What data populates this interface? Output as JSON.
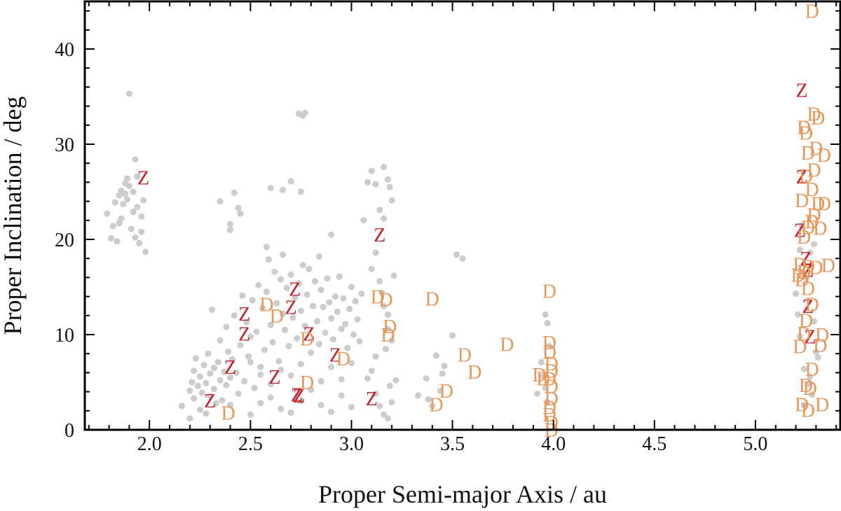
{
  "chart_data": {
    "type": "scatter",
    "title": "",
    "xlabel": "Proper Semi-major Axis / au",
    "ylabel": "Proper Inclination / deg",
    "xlim": [
      1.68,
      5.42
    ],
    "ylim": [
      0,
      45
    ],
    "x_ticks": [
      2.0,
      2.5,
      3.0,
      3.5,
      4.0,
      4.5,
      5.0
    ],
    "x_tick_labels": [
      "2.0",
      "2.5",
      "3.0",
      "3.5",
      "4.0",
      "4.5",
      "5.0"
    ],
    "y_ticks": [
      0,
      10,
      20,
      30,
      40
    ],
    "y_tick_labels": [
      "0",
      "10",
      "20",
      "30",
      "40"
    ],
    "grid": false,
    "colors": {
      "background_points": "#cccccc",
      "Z": "#c0202a",
      "D": "#e8975a"
    },
    "series": [
      {
        "marker": "dot",
        "points": [
          [
            1.79,
            22.7
          ],
          [
            1.81,
            20.1
          ],
          [
            1.82,
            21.4
          ],
          [
            1.83,
            23.9
          ],
          [
            1.84,
            19.8
          ],
          [
            1.85,
            24.6
          ],
          [
            1.86,
            25.1
          ],
          [
            1.86,
            22.2
          ],
          [
            1.87,
            23.7
          ],
          [
            1.88,
            25.9
          ],
          [
            1.89,
            24.2
          ],
          [
            1.89,
            26.4
          ],
          [
            1.9,
            35.3
          ],
          [
            1.91,
            21.1
          ],
          [
            1.92,
            22.9
          ],
          [
            1.92,
            25.0
          ],
          [
            1.93,
            20.2
          ],
          [
            1.94,
            26.6
          ],
          [
            1.95,
            19.6
          ],
          [
            1.96,
            22.4
          ],
          [
            1.97,
            24.1
          ],
          [
            1.93,
            28.4
          ],
          [
            1.9,
            25.6
          ],
          [
            1.88,
            24.8
          ],
          [
            1.96,
            20.8
          ],
          [
            1.98,
            18.7
          ],
          [
            1.85,
            21.7
          ],
          [
            1.94,
            23.4
          ],
          [
            2.16,
            2.5
          ],
          [
            2.2,
            1.2
          ],
          [
            2.2,
            4.1
          ],
          [
            2.21,
            5.0
          ],
          [
            2.22,
            3.3
          ],
          [
            2.22,
            6.2
          ],
          [
            2.23,
            7.5
          ],
          [
            2.24,
            4.6
          ],
          [
            2.25,
            2.1
          ],
          [
            2.25,
            5.6
          ],
          [
            2.26,
            3.9
          ],
          [
            2.27,
            6.8
          ],
          [
            2.28,
            1.7
          ],
          [
            2.28,
            4.9
          ],
          [
            2.29,
            8.0
          ],
          [
            2.3,
            3.5
          ],
          [
            2.3,
            5.9
          ],
          [
            2.31,
            12.6
          ],
          [
            2.32,
            4.3
          ],
          [
            2.32,
            6.5
          ],
          [
            2.33,
            2.8
          ],
          [
            2.34,
            7.1
          ],
          [
            2.35,
            5.2
          ],
          [
            2.35,
            9.4
          ],
          [
            2.36,
            3.1
          ],
          [
            2.37,
            6.1
          ],
          [
            2.38,
            4.7
          ],
          [
            2.38,
            10.8
          ],
          [
            2.39,
            8.2
          ],
          [
            2.4,
            5.5
          ],
          [
            2.4,
            2.6
          ],
          [
            2.41,
            7.4
          ],
          [
            2.42,
            12.0
          ],
          [
            2.43,
            6.0
          ],
          [
            2.44,
            3.8
          ],
          [
            2.45,
            8.9
          ],
          [
            2.46,
            14.1
          ],
          [
            2.47,
            5.1
          ],
          [
            2.48,
            11.3
          ],
          [
            2.49,
            7.7
          ],
          [
            2.5,
            9.8
          ],
          [
            2.51,
            13.6
          ],
          [
            2.52,
            4.4
          ],
          [
            2.53,
            10.3
          ],
          [
            2.54,
            15.2
          ],
          [
            2.55,
            6.6
          ],
          [
            2.56,
            12.8
          ],
          [
            2.57,
            8.4
          ],
          [
            2.58,
            14.5
          ],
          [
            2.59,
            17.9
          ],
          [
            2.6,
            11.0
          ],
          [
            2.61,
            9.2
          ],
          [
            2.62,
            16.6
          ],
          [
            2.63,
            13.3
          ],
          [
            2.64,
            7.2
          ],
          [
            2.65,
            15.8
          ],
          [
            2.66,
            12.2
          ],
          [
            2.67,
            10.5
          ],
          [
            2.68,
            14.9
          ],
          [
            2.69,
            8.8
          ],
          [
            2.7,
            16.3
          ],
          [
            2.71,
            11.8
          ],
          [
            2.72,
            13.9
          ],
          [
            2.73,
            9.6
          ],
          [
            2.74,
            15.4
          ],
          [
            2.75,
            12.5
          ],
          [
            2.76,
            17.3
          ],
          [
            2.77,
            10.9
          ],
          [
            2.78,
            14.2
          ],
          [
            2.79,
            16.9
          ],
          [
            2.8,
            8.1
          ],
          [
            2.81,
            13.0
          ],
          [
            2.82,
            15.6
          ],
          [
            2.83,
            11.4
          ],
          [
            2.84,
            9.0
          ],
          [
            2.85,
            14.7
          ],
          [
            2.86,
            12.9
          ],
          [
            2.87,
            10.2
          ],
          [
            2.88,
            15.9
          ],
          [
            2.89,
            13.4
          ],
          [
            2.9,
            11.7
          ],
          [
            2.91,
            9.5
          ],
          [
            2.92,
            14.0
          ],
          [
            2.93,
            12.4
          ],
          [
            2.94,
            16.1
          ],
          [
            2.95,
            10.6
          ],
          [
            2.96,
            13.8
          ],
          [
            2.97,
            11.1
          ],
          [
            2.98,
            8.6
          ],
          [
            2.99,
            12.7
          ],
          [
            3.0,
            15.0
          ],
          [
            3.01,
            10.0
          ],
          [
            3.02,
            13.5
          ],
          [
            3.03,
            11.6
          ],
          [
            3.04,
            9.3
          ],
          [
            3.05,
            14.3
          ],
          [
            2.35,
            24.0
          ],
          [
            2.42,
            24.9
          ],
          [
            2.44,
            23.3
          ],
          [
            2.45,
            22.7
          ],
          [
            2.4,
            21.6
          ],
          [
            2.4,
            21.0
          ],
          [
            2.6,
            25.4
          ],
          [
            2.66,
            25.2
          ],
          [
            2.7,
            26.1
          ],
          [
            2.75,
            25.0
          ],
          [
            2.74,
            33.2
          ],
          [
            2.76,
            33.0
          ],
          [
            2.77,
            33.3
          ],
          [
            2.9,
            20.5
          ],
          [
            2.58,
            19.2
          ],
          [
            2.84,
            18.2
          ],
          [
            2.66,
            18.4
          ],
          [
            3.06,
            22.0
          ],
          [
            3.08,
            26.0
          ],
          [
            3.1,
            27.2
          ],
          [
            3.12,
            25.8
          ],
          [
            3.14,
            23.1
          ],
          [
            3.16,
            27.6
          ],
          [
            3.18,
            26.3
          ],
          [
            3.19,
            25.5
          ],
          [
            3.2,
            24.1
          ],
          [
            3.16,
            22.2
          ],
          [
            3.12,
            18.6
          ],
          [
            3.1,
            16.9
          ],
          [
            3.14,
            15.6
          ],
          [
            3.15,
            14.4
          ],
          [
            3.16,
            13.0
          ],
          [
            3.18,
            12.1
          ],
          [
            3.18,
            10.6
          ],
          [
            3.2,
            9.4
          ],
          [
            3.17,
            8.5
          ],
          [
            3.12,
            7.7
          ],
          [
            3.1,
            6.2
          ],
          [
            3.08,
            5.4
          ],
          [
            3.12,
            3.8
          ],
          [
            3.14,
            2.5
          ],
          [
            3.16,
            1.6
          ],
          [
            3.18,
            1.2
          ],
          [
            3.2,
            2.9
          ],
          [
            3.19,
            4.6
          ],
          [
            3.22,
            5.2
          ],
          [
            3.21,
            16.2
          ],
          [
            2.5,
            1.6
          ],
          [
            2.55,
            2.8
          ],
          [
            2.6,
            3.4
          ],
          [
            2.65,
            2.2
          ],
          [
            2.7,
            1.8
          ],
          [
            2.75,
            3.0
          ],
          [
            2.8,
            4.2
          ],
          [
            2.85,
            2.6
          ],
          [
            2.9,
            1.9
          ],
          [
            2.95,
            3.6
          ],
          [
            3.0,
            2.4
          ],
          [
            2.65,
            6.3
          ],
          [
            2.7,
            5.7
          ],
          [
            2.75,
            6.9
          ],
          [
            2.6,
            4.8
          ],
          [
            2.55,
            5.8
          ],
          [
            2.5,
            7.1
          ],
          [
            2.85,
            5.1
          ],
          [
            2.9,
            6.6
          ],
          [
            2.95,
            5.3
          ],
          [
            3.0,
            7.0
          ],
          [
            3.37,
            5.4
          ],
          [
            3.38,
            3.2
          ],
          [
            3.4,
            2.5
          ],
          [
            3.42,
            7.8
          ],
          [
            3.44,
            4.1
          ],
          [
            3.45,
            5.9
          ],
          [
            3.46,
            6.7
          ],
          [
            3.5,
            9.9
          ],
          [
            3.52,
            18.4
          ],
          [
            3.55,
            18.0
          ],
          [
            3.33,
            3.6
          ],
          [
            3.92,
            3.8
          ],
          [
            3.96,
            12.1
          ],
          [
            3.97,
            11.2
          ],
          [
            3.98,
            8.8
          ],
          [
            3.95,
            5.6
          ],
          [
            3.96,
            4.4
          ],
          [
            3.94,
            7.1
          ],
          [
            3.97,
            2.9
          ],
          [
            5.2,
            14.3
          ],
          [
            5.21,
            12.1
          ],
          [
            5.22,
            9.8
          ],
          [
            5.24,
            6.4
          ],
          [
            5.26,
            4.8
          ],
          [
            5.28,
            3.7
          ],
          [
            5.25,
            15.9
          ],
          [
            5.27,
            18.6
          ],
          [
            5.29,
            19.5
          ],
          [
            5.3,
            8.2
          ],
          [
            5.23,
            21.4
          ],
          [
            5.22,
            18.9
          ],
          [
            5.31,
            7.6
          ],
          [
            5.24,
            2.6
          ],
          [
            5.27,
            5.6
          ],
          [
            5.29,
            11.4
          ]
        ]
      },
      {
        "name": "Z",
        "marker": "Z",
        "points": [
          [
            1.97,
            26.5
          ],
          [
            2.47,
            12.2
          ],
          [
            2.47,
            10.1
          ],
          [
            2.4,
            6.6
          ],
          [
            2.3,
            3.1
          ],
          [
            2.62,
            5.6
          ],
          [
            2.72,
            14.8
          ],
          [
            2.7,
            12.9
          ],
          [
            2.73,
            3.7
          ],
          [
            2.74,
            3.6
          ],
          [
            2.79,
            10.1
          ],
          [
            2.92,
            7.9
          ],
          [
            3.1,
            3.3
          ],
          [
            3.14,
            20.5
          ],
          [
            5.23,
            35.7
          ],
          [
            5.23,
            26.6
          ],
          [
            5.22,
            21.0
          ],
          [
            5.25,
            18.0
          ],
          [
            5.26,
            16.8
          ],
          [
            5.26,
            13.0
          ],
          [
            5.27,
            9.8
          ]
        ]
      },
      {
        "name": "D",
        "marker": "D",
        "points": [
          [
            2.39,
            1.8
          ],
          [
            2.58,
            13.2
          ],
          [
            2.63,
            12.0
          ],
          [
            2.78,
            9.6
          ],
          [
            2.78,
            5.0
          ],
          [
            2.96,
            7.5
          ],
          [
            3.13,
            14.0
          ],
          [
            3.17,
            13.7
          ],
          [
            3.19,
            10.9
          ],
          [
            3.18,
            10.0
          ],
          [
            3.4,
            13.8
          ],
          [
            3.42,
            2.7
          ],
          [
            3.47,
            4.1
          ],
          [
            3.56,
            7.9
          ],
          [
            3.61,
            6.1
          ],
          [
            3.77,
            9.0
          ],
          [
            3.93,
            5.8
          ],
          [
            3.95,
            5.4
          ],
          [
            3.98,
            14.6
          ],
          [
            3.98,
            9.2
          ],
          [
            3.98,
            8.2
          ],
          [
            3.99,
            7.0
          ],
          [
            3.99,
            6.2
          ],
          [
            3.98,
            5.4
          ],
          [
            3.99,
            4.6
          ],
          [
            3.99,
            3.3
          ],
          [
            3.98,
            2.4
          ],
          [
            3.98,
            1.6
          ],
          [
            3.99,
            0.8
          ],
          [
            3.99,
            0.0
          ],
          [
            5.28,
            44.0
          ],
          [
            5.29,
            33.2
          ],
          [
            5.31,
            32.8
          ],
          [
            5.24,
            31.8
          ],
          [
            5.25,
            31.2
          ],
          [
            5.3,
            29.6
          ],
          [
            5.26,
            29.1
          ],
          [
            5.34,
            28.9
          ],
          [
            5.29,
            27.3
          ],
          [
            5.25,
            26.7
          ],
          [
            5.28,
            25.3
          ],
          [
            5.23,
            24.1
          ],
          [
            5.31,
            23.8
          ],
          [
            5.34,
            23.8
          ],
          [
            5.29,
            22.6
          ],
          [
            5.28,
            21.9
          ],
          [
            5.26,
            21.3
          ],
          [
            5.32,
            21.2
          ],
          [
            5.24,
            20.3
          ],
          [
            5.22,
            17.4
          ],
          [
            5.26,
            17.2
          ],
          [
            5.3,
            17.1
          ],
          [
            5.36,
            17.3
          ],
          [
            5.24,
            16.6
          ],
          [
            5.21,
            16.3
          ],
          [
            5.23,
            15.8
          ],
          [
            5.26,
            14.9
          ],
          [
            5.28,
            13.2
          ],
          [
            5.25,
            11.5
          ],
          [
            5.24,
            10.1
          ],
          [
            5.33,
            10.0
          ],
          [
            5.22,
            8.8
          ],
          [
            5.32,
            8.9
          ],
          [
            5.28,
            6.4
          ],
          [
            5.25,
            4.7
          ],
          [
            5.27,
            4.4
          ],
          [
            5.23,
            2.7
          ],
          [
            5.26,
            2.1
          ],
          [
            5.33,
            2.7
          ]
        ]
      }
    ]
  }
}
